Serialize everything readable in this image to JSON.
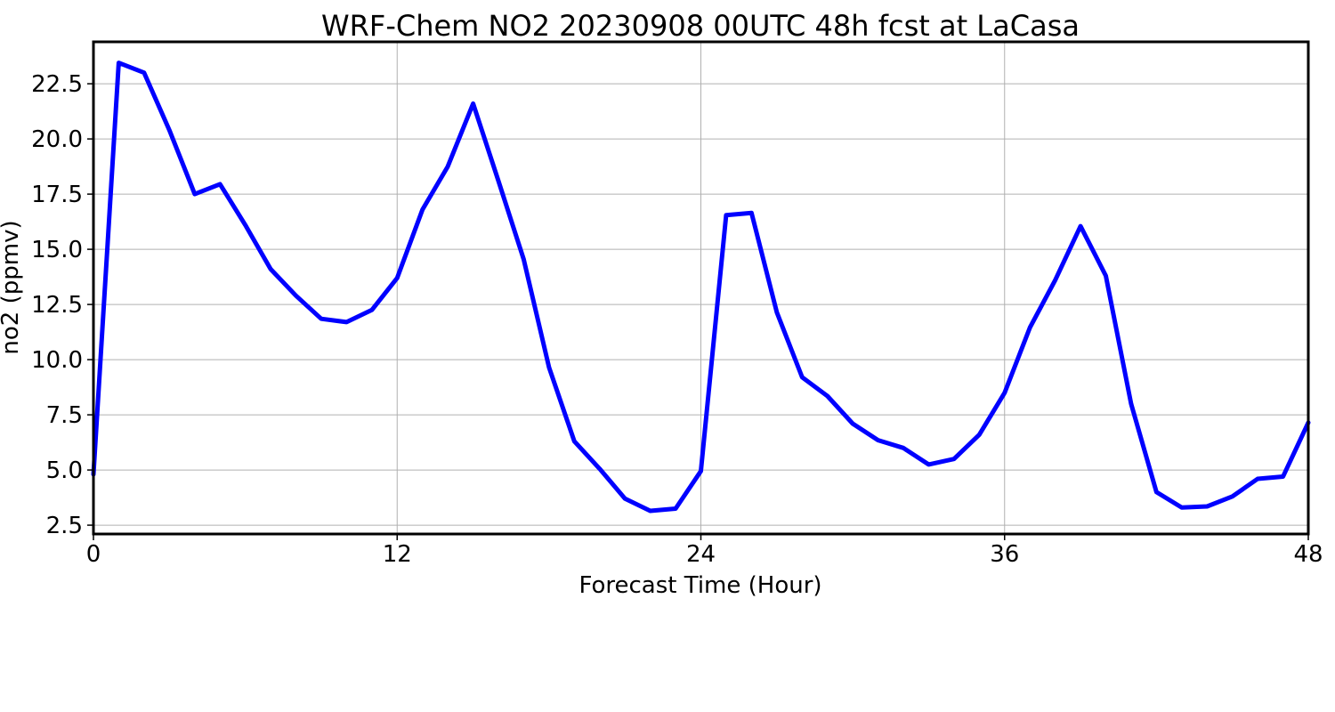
{
  "chart_data": {
    "type": "line",
    "title": "WRF-Chem NO2  20230908 00UTC 48h fcst at LaCasa",
    "xlabel": "Forecast Time (Hour)",
    "ylabel": "no2  (ppmv)",
    "xlim": [
      0,
      48
    ],
    "ylim": [
      2.1,
      24.4
    ],
    "xticks": [
      0,
      12,
      24,
      36,
      48
    ],
    "xtick_labels": [
      "0",
      "12",
      "24",
      "36",
      "48"
    ],
    "yticks": [
      2.5,
      5.0,
      7.5,
      10.0,
      12.5,
      15.0,
      17.5,
      20.0,
      22.5
    ],
    "ytick_labels": [
      "2.5",
      "5.0",
      "7.5",
      "10.0",
      "12.5",
      "15.0",
      "17.5",
      "20.0",
      "22.5"
    ],
    "grid": true,
    "line_color": "#0000ff",
    "series": [
      {
        "x": [
          0,
          1,
          2,
          3,
          4,
          5,
          6,
          7,
          8,
          9,
          10,
          11,
          12,
          13,
          14,
          15,
          16,
          17,
          18,
          19,
          20,
          21,
          22,
          23,
          24,
          25,
          26,
          27,
          28,
          29,
          30,
          31,
          32,
          33,
          34,
          35,
          36,
          37,
          38,
          39,
          40,
          41,
          42,
          43,
          44,
          45,
          46,
          47,
          48
        ],
        "values": [
          4.8,
          23.45,
          23.0,
          20.4,
          17.5,
          17.95,
          16.1,
          14.1,
          12.9,
          11.85,
          11.7,
          12.25,
          13.7,
          16.8,
          18.75,
          21.6,
          18.1,
          14.55,
          9.65,
          6.3,
          5.05,
          3.7,
          3.15,
          3.25,
          4.95,
          16.55,
          16.65,
          12.15,
          9.2,
          8.35,
          7.1,
          6.35,
          6.0,
          5.25,
          5.5,
          6.6,
          8.5,
          11.45,
          13.6,
          16.05,
          13.8,
          8.0,
          4.0,
          3.3,
          3.35,
          3.8,
          4.6,
          4.7,
          7.15
        ]
      }
    ]
  }
}
